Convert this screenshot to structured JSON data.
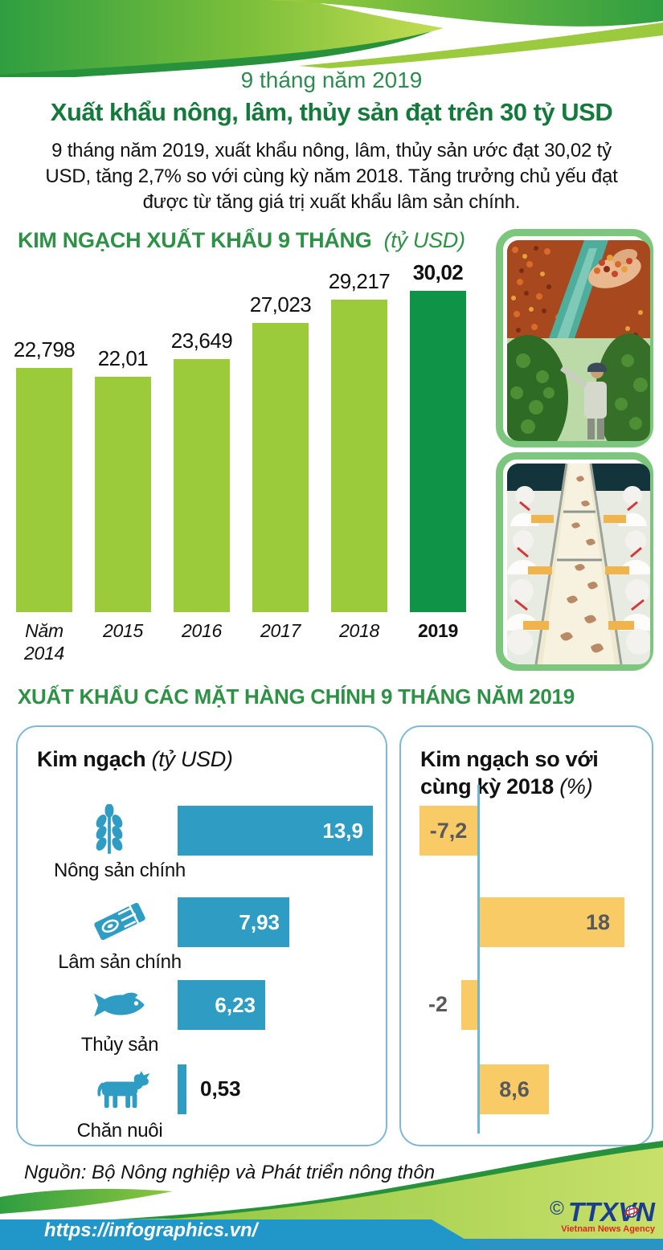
{
  "header": {
    "period": "9 tháng năm 2019",
    "title": "Xuất khẩu nông, lâm, thủy sản đạt trên 30 tỷ USD",
    "description": "9 tháng năm 2019, xuất khẩu nông, lâm, thủy sản ước đạt 30,02 tỷ USD, tăng 2,7% so với cùng kỳ năm 2018. Tăng trưởng chủ yếu đạt được từ tăng giá trị xuất khẩu lâm sản chính."
  },
  "section1": {
    "title": "KIM NGẠCH XUẤT KHẨU 9 THÁNG",
    "unit_label": "(tỷ USD)"
  },
  "section2": {
    "title": "XUẤT KHẨU CÁC MẶT HÀNG CHÍNH 9 THÁNG NĂM 2019"
  },
  "chart_data": [
    {
      "id": "export-turnover-9-months",
      "type": "bar",
      "title": "KIM NGẠCH XUẤT KHẨU 9 THÁNG",
      "ylabel": "tỷ USD",
      "categories": [
        "Năm 2014",
        "2015",
        "2016",
        "2017",
        "2018",
        "2019"
      ],
      "categories_display": [
        "Năm\n2014",
        "2015",
        "2016",
        "2017",
        "2018",
        "2019"
      ],
      "values": [
        22.798,
        22.01,
        23.649,
        27.023,
        29.217,
        30.02
      ],
      "value_labels": [
        "22,798",
        "22,01",
        "23,649",
        "27,023",
        "29,217",
        "30,02"
      ],
      "highlight_index": 5,
      "bar_color": "#9bca3b",
      "highlight_color": "#0f9347",
      "ylim": [
        0,
        30.02
      ],
      "grid": false,
      "legend": "none"
    },
    {
      "id": "turnover-by-commodity",
      "type": "bar-horizontal",
      "title": "Kim ngạch",
      "xlabel": "tỷ USD",
      "categories": [
        "Nông sản chính",
        "Lâm sản chính",
        "Thủy sản",
        "Chăn nuôi"
      ],
      "values": [
        13.9,
        7.93,
        6.23,
        0.53
      ],
      "value_labels": [
        "13,9",
        "7,93",
        "6,23",
        "0,53"
      ],
      "icons": [
        "wheat-icon",
        "wood-plank-icon",
        "fish-icon",
        "cow-icon"
      ],
      "bar_color": "#2e9cc3",
      "xlim": [
        0,
        14
      ]
    },
    {
      "id": "turnover-vs-2018",
      "type": "bar-horizontal",
      "title": "Kim ngạch so với cùng kỳ 2018",
      "xlabel": "%",
      "categories": [
        "Nông sản chính",
        "Lâm sản chính",
        "Thủy sản",
        "Chăn nuôi"
      ],
      "values": [
        -7.2,
        18,
        -2,
        8.6
      ],
      "value_labels": [
        "-7,2",
        "18",
        "-2",
        "8,6"
      ],
      "bar_color": "#f9cb67",
      "label_color": "#58595b",
      "xlim": [
        -8,
        20
      ]
    }
  ],
  "panels": {
    "left": {
      "title": "Kim ngạch",
      "unit_label": "(tỷ USD)"
    },
    "right": {
      "title_line1": "Kim ngạch so với",
      "title_line2": "cùng kỳ 2018",
      "unit_label": "(%)"
    }
  },
  "photos": {
    "card1_top": "coffee-beans-sorting",
    "card1_bottom": "pepper-harvesting",
    "card2": "shrimp-processing-line"
  },
  "footer": {
    "source": "Nguồn: Bộ Nông nghiệp và Phát triển nông thôn",
    "url": "https://infographics.vn/",
    "copyright": "©",
    "agency": "TTXVN",
    "agency_caption": "Vietnam News Agency"
  },
  "colors": {
    "light_green_bar": "#9bca3b",
    "dark_green_bar": "#0f9347",
    "title_green": "#2e9146",
    "subtitle_green": "#147a3c",
    "blue_bar": "#2e9cc3",
    "yellow_bar": "#f9cb67",
    "yellow_label_gray": "#58595b",
    "panel_border_blue": "#7fb8d6",
    "axis_blue": "#6fb6cf",
    "ribbon_blue": "#2196c9",
    "photo_frame_green": "#7cc67d"
  }
}
